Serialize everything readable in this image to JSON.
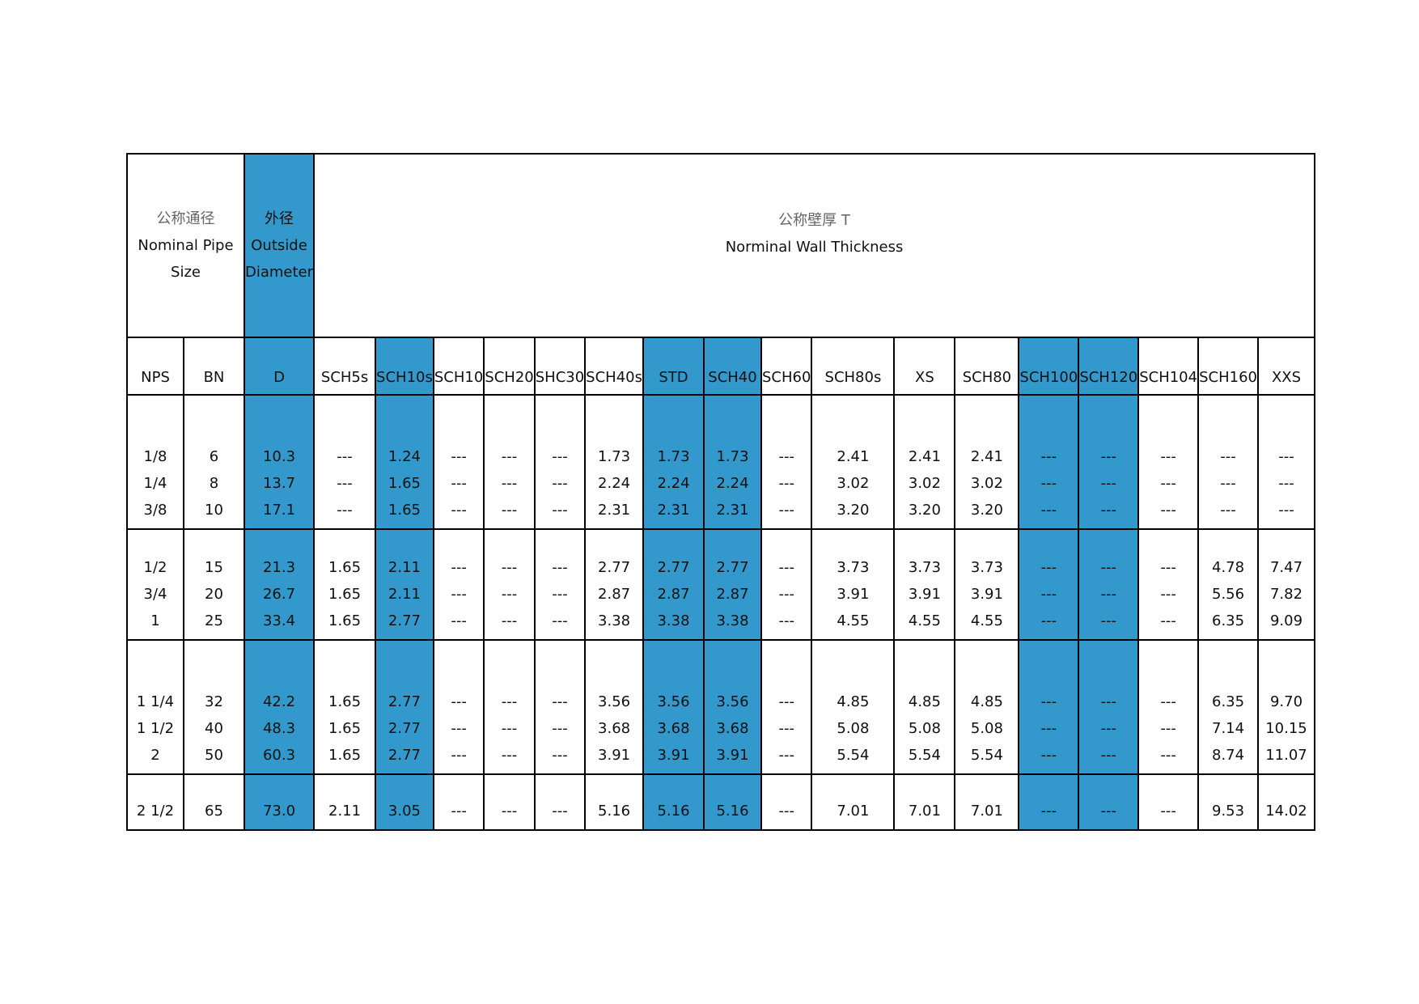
{
  "table": {
    "header": {
      "size": [
        "公称通径",
        "Nominal Pipe",
        "Size"
      ],
      "diameter": [
        "外径",
        "Outside",
        "Diameter"
      ],
      "thickness": [
        "公称壁厚 T",
        "Norminal Wall Thickness"
      ]
    },
    "columns": [
      "NPS",
      "BN",
      "D",
      "SCH5s",
      "SCH10s",
      "SCH10",
      "SCH20",
      "SHC30",
      "SCH40s",
      "STD",
      "SCH40",
      "SCH60",
      "SCH80s",
      "XS",
      "SCH80",
      "SCH100",
      "SCH120",
      "SCH104",
      "SCH160",
      "XXS"
    ],
    "groups": [
      [
        [
          "1/8",
          "1/4",
          "3/8"
        ],
        [
          "6",
          "8",
          "10"
        ],
        [
          "10.3",
          "13.7",
          "17.1"
        ],
        [
          "---",
          "---",
          "---"
        ],
        [
          "1.24",
          "1.65",
          "1.65"
        ],
        [
          "---",
          "---",
          "---"
        ],
        [
          "---",
          "---",
          "---"
        ],
        [
          "---",
          "---",
          "---"
        ],
        [
          "1.73",
          "2.24",
          "2.31"
        ],
        [
          "1.73",
          "2.24",
          "2.31"
        ],
        [
          "1.73",
          "2.24",
          "2.31"
        ],
        [
          "---",
          "---",
          "---"
        ],
        [
          "2.41",
          "3.02",
          "3.20"
        ],
        [
          "2.41",
          "3.02",
          "3.20"
        ],
        [
          "2.41",
          "3.02",
          "3.20"
        ],
        [
          "---",
          "---",
          "---"
        ],
        [
          "---",
          "---",
          "---"
        ],
        [
          "---",
          "---",
          "---"
        ],
        [
          "---",
          "---",
          "---"
        ],
        [
          "---",
          "---",
          "---"
        ]
      ],
      [
        [
          "1/2",
          "3/4",
          "1"
        ],
        [
          "15",
          "20",
          "25"
        ],
        [
          "21.3",
          "26.7",
          "33.4"
        ],
        [
          "1.65",
          "1.65",
          "1.65"
        ],
        [
          "2.11",
          "2.11",
          "2.77"
        ],
        [
          "---",
          "---",
          "---"
        ],
        [
          "---",
          "---",
          "---"
        ],
        [
          "---",
          "---",
          "---"
        ],
        [
          "2.77",
          "2.87",
          "3.38"
        ],
        [
          "2.77",
          "2.87",
          "3.38"
        ],
        [
          "2.77",
          "2.87",
          "3.38"
        ],
        [
          "---",
          "---",
          "---"
        ],
        [
          "3.73",
          "3.91",
          "4.55"
        ],
        [
          "3.73",
          "3.91",
          "4.55"
        ],
        [
          "3.73",
          "3.91",
          "4.55"
        ],
        [
          "---",
          "---",
          "---"
        ],
        [
          "---",
          "---",
          "---"
        ],
        [
          "---",
          "---",
          "---"
        ],
        [
          "4.78",
          "5.56",
          "6.35"
        ],
        [
          "7.47",
          "7.82",
          "9.09"
        ]
      ],
      [
        [
          "1 1/4",
          "1 1/2",
          "2"
        ],
        [
          "32",
          "40",
          "50"
        ],
        [
          "42.2",
          "48.3",
          "60.3"
        ],
        [
          "1.65",
          "1.65",
          "1.65"
        ],
        [
          "2.77",
          "2.77",
          "2.77"
        ],
        [
          "---",
          "---",
          "---"
        ],
        [
          "---",
          "---",
          "---"
        ],
        [
          "---",
          "---",
          "---"
        ],
        [
          "3.56",
          "3.68",
          "3.91"
        ],
        [
          "3.56",
          "3.68",
          "3.91"
        ],
        [
          "3.56",
          "3.68",
          "3.91"
        ],
        [
          "---",
          "---",
          "---"
        ],
        [
          "4.85",
          "5.08",
          "5.54"
        ],
        [
          "4.85",
          "5.08",
          "5.54"
        ],
        [
          "4.85",
          "5.08",
          "5.54"
        ],
        [
          "---",
          "---",
          "---"
        ],
        [
          "---",
          "---",
          "---"
        ],
        [
          "---",
          "---",
          "---"
        ],
        [
          "6.35",
          "7.14",
          "8.74"
        ],
        [
          "9.70",
          "10.15",
          "11.07"
        ]
      ],
      [
        [
          "2 1/2"
        ],
        [
          "65"
        ],
        [
          "73.0"
        ],
        [
          "2.11"
        ],
        [
          "3.05"
        ],
        [
          "---"
        ],
        [
          "---"
        ],
        [
          "---"
        ],
        [
          "5.16"
        ],
        [
          "5.16"
        ],
        [
          "5.16"
        ],
        [
          "---"
        ],
        [
          "7.01"
        ],
        [
          "7.01"
        ],
        [
          "7.01"
        ],
        [
          "---"
        ],
        [
          "---"
        ],
        [
          "---"
        ],
        [
          "9.53"
        ],
        [
          "14.02"
        ]
      ]
    ]
  }
}
